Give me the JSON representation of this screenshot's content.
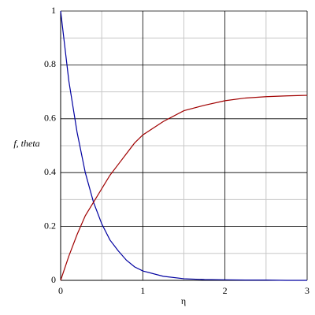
{
  "chart_data": {
    "type": "line",
    "xlabel": "η",
    "ylabel": "f, theta",
    "x": [
      0,
      0.1,
      0.2,
      0.3,
      0.4,
      0.5,
      0.6,
      0.7,
      0.8,
      0.9,
      1.0,
      1.25,
      1.5,
      1.75,
      2,
      2.25,
      2.5,
      2.75,
      3
    ],
    "series": [
      {
        "name": "f",
        "color": "#0000a0",
        "values": [
          1,
          0.74,
          0.55,
          0.4,
          0.29,
          0.21,
          0.15,
          0.11,
          0.075,
          0.05,
          0.035,
          0.015,
          0.006,
          0.003,
          0.002,
          0.001,
          0.001,
          0,
          0
        ]
      },
      {
        "name": "theta",
        "color": "#a00000",
        "values": [
          0,
          0.09,
          0.17,
          0.24,
          0.29,
          0.34,
          0.39,
          0.43,
          0.47,
          0.51,
          0.54,
          0.59,
          0.63,
          0.65,
          0.667,
          0.677,
          0.682,
          0.685,
          0.687
        ]
      }
    ],
    "xlim": [
      0,
      3
    ],
    "ylim": [
      0,
      1
    ],
    "xticks": [
      0,
      1,
      2,
      3
    ],
    "yticks": [
      0,
      0.2,
      0.4,
      0.6,
      0.8,
      1
    ],
    "minor_xgrid": [
      0.5,
      1.5,
      2.5
    ],
    "minor_ygrid": [
      0.1,
      0.3,
      0.5,
      0.7,
      0.9
    ],
    "grid": true
  }
}
